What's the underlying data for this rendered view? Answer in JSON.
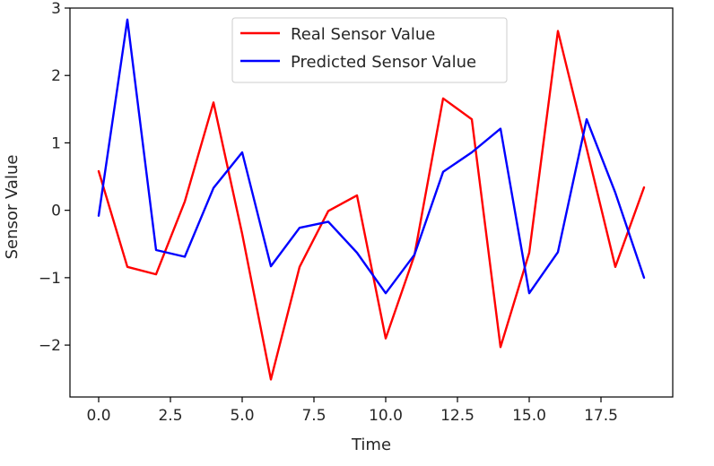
{
  "chart_data": {
    "type": "line",
    "xlabel": "Time",
    "ylabel": "Sensor Value",
    "xlim": [
      -1.0,
      20.0
    ],
    "ylim": [
      -2.77,
      3.0
    ],
    "xticks": [
      0.0,
      2.5,
      5.0,
      7.5,
      10.0,
      12.5,
      15.0,
      17.5
    ],
    "xtick_labels": [
      "0.0",
      "2.5",
      "5.0",
      "7.5",
      "10.0",
      "12.5",
      "15.0",
      "17.5"
    ],
    "yticks": [
      -2,
      -1,
      0,
      1,
      2,
      3
    ],
    "ytick_labels": [
      "−2",
      "−1",
      "0",
      "1",
      "2",
      "3"
    ],
    "grid": false,
    "legend_position": "top-center",
    "x": [
      0,
      1,
      2,
      3,
      4,
      5,
      6,
      7,
      8,
      9,
      10,
      11,
      12,
      13,
      14,
      15,
      16,
      17,
      18,
      19
    ],
    "series": [
      {
        "name": "Real Sensor Value",
        "color": "#ff0000",
        "values": [
          0.58,
          -0.84,
          -0.95,
          0.13,
          1.6,
          -0.35,
          -2.51,
          -0.84,
          -0.01,
          0.22,
          -1.9,
          -0.67,
          1.66,
          1.35,
          -2.03,
          -0.63,
          2.66,
          0.92,
          -0.84,
          0.34
        ]
      },
      {
        "name": "Predicted Sensor Value",
        "color": "#0000ff",
        "values": [
          -0.08,
          2.83,
          -0.59,
          -0.69,
          0.33,
          0.86,
          -0.83,
          -0.26,
          -0.17,
          -0.63,
          -1.23,
          -0.66,
          0.57,
          0.86,
          1.21,
          -1.23,
          -0.62,
          1.35,
          0.26,
          -1.0
        ]
      }
    ]
  }
}
